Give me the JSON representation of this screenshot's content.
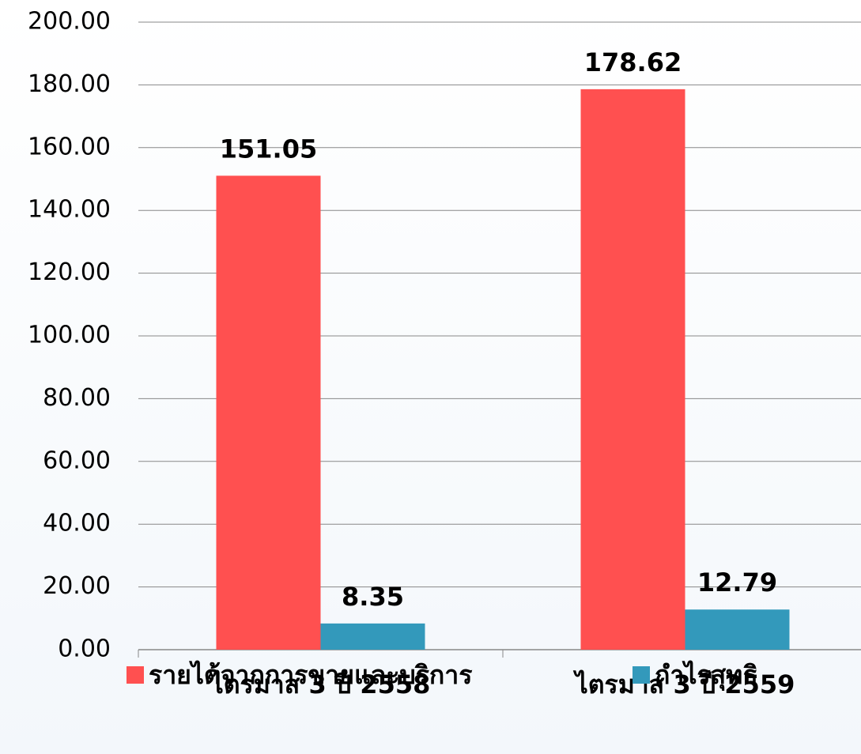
{
  "chart_data": {
    "type": "bar",
    "categories": [
      "ไตรมาส 3 ปี 2558",
      "ไตรมาส 3 ปี 2559"
    ],
    "series": [
      {
        "name": "รายได้จากการขายและบริการ",
        "color": "#ff5050",
        "values": [
          151.05,
          178.62
        ]
      },
      {
        "name": "กำไรสุทธิ",
        "color": "#3399bb",
        "values": [
          8.35,
          12.79
        ]
      }
    ],
    "ylim": [
      0,
      200
    ],
    "yticks": [
      {
        "value": 0,
        "label": "0.00"
      },
      {
        "value": 20,
        "label": "20.00"
      },
      {
        "value": 40,
        "label": "40.00"
      },
      {
        "value": 60,
        "label": "60.00"
      },
      {
        "value": 80,
        "label": "80.00"
      },
      {
        "value": 100,
        "label": "100.00"
      },
      {
        "value": 120,
        "label": "120.00"
      },
      {
        "value": 140,
        "label": "140.00"
      },
      {
        "value": 160,
        "label": "160.00"
      },
      {
        "value": 180,
        "label": "180.00"
      },
      {
        "value": 200,
        "label": "200.00"
      }
    ],
    "grid": true,
    "legend": "bottom"
  }
}
